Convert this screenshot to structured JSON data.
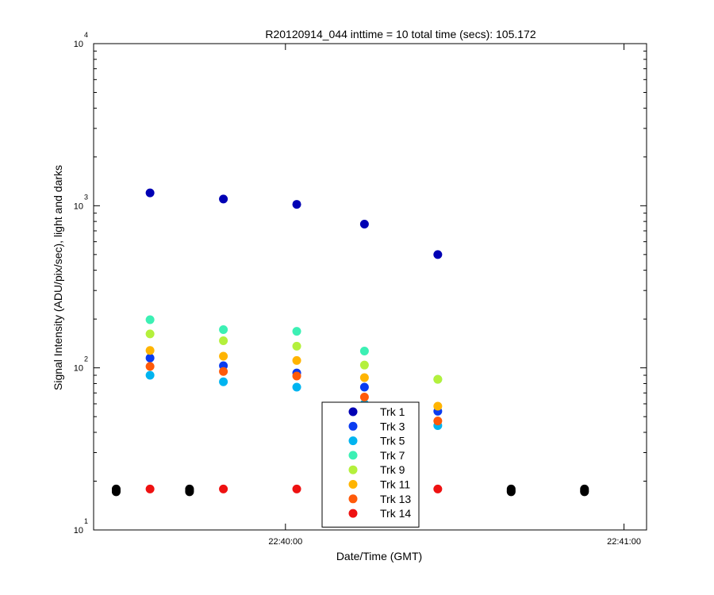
{
  "chart_data": {
    "type": "scatter",
    "title": "R20120914_044 inttime = 10 total time (secs): 105.172",
    "xlabel": "Date/Time (GMT)",
    "ylabel": "Signal Intensity (ADU/pix/sec), light and darks",
    "yscale": "log",
    "ylim": [
      10,
      10000
    ],
    "xlim": [
      "22:39:26",
      "22:41:04"
    ],
    "x_ticks": [
      "22:40:00",
      "22:41:00"
    ],
    "y_ticks": [
      {
        "value": 10,
        "base": "10",
        "exp": "1"
      },
      {
        "value": 100,
        "base": "10",
        "exp": "2"
      },
      {
        "value": 1000,
        "base": "10",
        "exp": "3"
      },
      {
        "value": 10000,
        "base": "10",
        "exp": "4"
      }
    ],
    "legend_position": "bottom-center",
    "grid": false,
    "series": [
      {
        "name": "Trk 1",
        "color": "#0000b4",
        "x": [
          "22:39:36",
          "22:39:49",
          "22:40:02",
          "22:40:14",
          "22:40:27"
        ],
        "values": [
          1200,
          1100,
          1020,
          770,
          500
        ]
      },
      {
        "name": "Trk 3",
        "color": "#0a3cf0",
        "x": [
          "22:39:36",
          "22:39:49",
          "22:40:02",
          "22:40:14",
          "22:40:27"
        ],
        "values": [
          115,
          103,
          93,
          76,
          54
        ]
      },
      {
        "name": "Trk 5",
        "color": "#00b4f0",
        "x": [
          "22:39:36",
          "22:39:49",
          "22:40:02",
          "22:40:14",
          "22:40:27"
        ],
        "values": [
          90,
          82,
          76,
          60,
          44
        ]
      },
      {
        "name": "Trk 7",
        "color": "#3cf0b4",
        "x": [
          "22:39:36",
          "22:39:49",
          "22:40:02",
          "22:40:14",
          "22:40:27"
        ],
        "values": [
          198,
          172,
          168,
          127,
          85
        ]
      },
      {
        "name": "Trk 9",
        "color": "#b4f03c",
        "x": [
          "22:39:36",
          "22:39:49",
          "22:40:02",
          "22:40:14",
          "22:40:27"
        ],
        "values": [
          162,
          147,
          136,
          104,
          85
        ]
      },
      {
        "name": "Trk 11",
        "color": "#ffb400",
        "x": [
          "22:39:36",
          "22:39:49",
          "22:40:02",
          "22:40:14",
          "22:40:27"
        ],
        "values": [
          128,
          118,
          111,
          87,
          58
        ]
      },
      {
        "name": "Trk 13",
        "color": "#ff5a0a",
        "x": [
          "22:39:36",
          "22:39:49",
          "22:40:02",
          "22:40:14",
          "22:40:27"
        ],
        "values": [
          102,
          95,
          89,
          66,
          47
        ]
      },
      {
        "name": "Trk 14",
        "color": "#ee1111",
        "x": [
          "22:39:36",
          "22:39:49",
          "22:40:02",
          "22:40:14",
          "22:40:27"
        ],
        "values": [
          17.9,
          17.9,
          17.9,
          17.9,
          17.9
        ]
      },
      {
        "color": "#000000",
        "x": [
          "22:39:30",
          "22:39:30",
          "22:39:30",
          "22:39:43",
          "22:39:43",
          "22:39:43",
          "22:40:40",
          "22:40:40",
          "22:40:40",
          "22:40:53",
          "22:40:53",
          "22:40:53"
        ],
        "values": [
          17.5,
          17.9,
          17.2,
          17.5,
          17.9,
          17.2,
          17.5,
          17.9,
          17.2,
          17.5,
          17.9,
          17.2
        ]
      }
    ]
  }
}
